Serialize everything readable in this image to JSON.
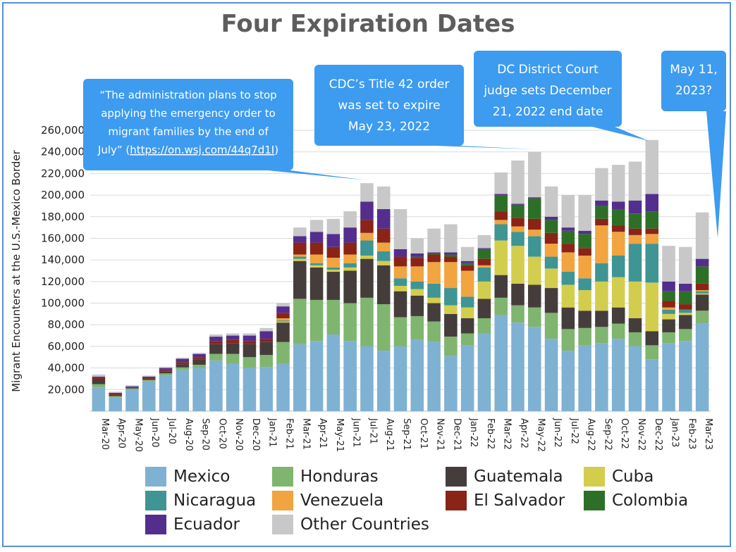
{
  "colors": {
    "Mexico": "#7fb1d3",
    "Honduras": "#7fb56f",
    "Guatemala": "#453d3c",
    "Cuba": "#d3cd4e",
    "Nicaragua": "#3f9593",
    "Venezuela": "#f1a43f",
    "El Salvador": "#8a2417",
    "Colombia": "#2e6f28",
    "Ecuador": "#542e8e",
    "Other Countries": "#c8c8c8",
    "callout": "#3d9bf0"
  },
  "chart_data": {
    "type": "bar",
    "stacked": true,
    "title": "Four Expiration Dates",
    "ylabel": "Migrant Encounters at the U.S.-Mexico Border",
    "xlabel": "",
    "ylim": [
      0,
      270000
    ],
    "yticks": [
      20000,
      40000,
      60000,
      80000,
      100000,
      120000,
      140000,
      160000,
      180000,
      200000,
      220000,
      240000,
      260000
    ],
    "ytick_labels": [
      "20,000",
      "40,000",
      "60,000",
      "80,000",
      "100,000",
      "120,000",
      "140,000",
      "160,000",
      "180,000",
      "200,000",
      "220,000",
      "240,000",
      "260,000"
    ],
    "grid": true,
    "legend_position": "bottom",
    "categories": [
      "Mar-20",
      "Apr-20",
      "May-20",
      "Jun-20",
      "Jul-20",
      "Aug-20",
      "Sep-20",
      "Oct-20",
      "Nov-20",
      "Dec-20",
      "Jan-21",
      "Feb-21",
      "Mar-21",
      "Apr-21",
      "May-21",
      "Jun-21",
      "Jul-21",
      "Aug-21",
      "Sep-21",
      "Oct-21",
      "Nov-21",
      "Dec-21",
      "Jan-22",
      "Feb-22",
      "Mar-22",
      "Apr-22",
      "May-22",
      "Jun-22",
      "Jul-22",
      "Aug-22",
      "Sep-22",
      "Oct-22",
      "Nov-22",
      "Dec-22",
      "Jan-23",
      "Feb-23",
      "Mar-23"
    ],
    "series": [
      {
        "name": "Mexico",
        "values": [
          22000,
          13000,
          20000,
          28000,
          33000,
          38000,
          40000,
          47000,
          44000,
          40000,
          41000,
          44000,
          62000,
          65000,
          71000,
          65000,
          60000,
          56000,
          60000,
          66000,
          64000,
          51000,
          61000,
          72000,
          89000,
          82000,
          78000,
          67000,
          56000,
          61000,
          63000,
          67000,
          60000,
          48000,
          63000,
          65000,
          81000
        ]
      },
      {
        "name": "Honduras",
        "values": [
          3000,
          1000,
          1000,
          1000,
          2000,
          2500,
          3000,
          6000,
          9000,
          10000,
          11000,
          20000,
          42000,
          38000,
          32000,
          35000,
          45000,
          43000,
          27000,
          22000,
          19000,
          18000,
          11000,
          14000,
          16000,
          16000,
          18000,
          24000,
          20000,
          16000,
          15000,
          14000,
          13000,
          13000,
          10000,
          11000,
          12000
        ]
      },
      {
        "name": "Guatemala",
        "values": [
          4000,
          1000,
          1000,
          1000,
          2000,
          3000,
          5000,
          9000,
          10000,
          12000,
          12000,
          18000,
          35000,
          30000,
          26000,
          30000,
          36000,
          36000,
          24000,
          19000,
          17000,
          21000,
          14000,
          18000,
          21000,
          20000,
          21000,
          23000,
          20000,
          16000,
          15000,
          15000,
          13000,
          13000,
          12000,
          13000,
          15000
        ]
      },
      {
        "name": "Cuba",
        "values": [
          0,
          0,
          0,
          0,
          0,
          0,
          0,
          0,
          0,
          0,
          0,
          1000,
          2000,
          2000,
          2000,
          3000,
          3000,
          4000,
          5000,
          6000,
          5000,
          8000,
          10000,
          16000,
          32000,
          35000,
          26000,
          18000,
          21000,
          19000,
          27000,
          28000,
          34000,
          45000,
          5000,
          2000,
          1000
        ]
      },
      {
        "name": "Nicaragua",
        "values": [
          0,
          0,
          0,
          0,
          0,
          0,
          0,
          0,
          0,
          0,
          0,
          1000,
          2000,
          2000,
          2000,
          4000,
          14000,
          9000,
          7000,
          7000,
          13000,
          16000,
          10000,
          13000,
          15000,
          13000,
          19000,
          11000,
          12000,
          11000,
          17000,
          20000,
          35000,
          36000,
          4000,
          3000,
          2000
        ]
      },
      {
        "name": "Venezuela",
        "values": [
          0,
          0,
          0,
          0,
          0,
          0,
          0,
          0,
          0,
          0,
          0,
          2000,
          2000,
          8000,
          9000,
          8000,
          7000,
          8000,
          11000,
          14000,
          20000,
          24000,
          24000,
          2000,
          4000,
          5000,
          6000,
          12000,
          18000,
          21000,
          35000,
          22000,
          8000,
          9000,
          2000,
          0,
          1000
        ]
      },
      {
        "name": "El Salvador",
        "values": [
          2000,
          1000,
          0,
          1000,
          1000,
          2000,
          2000,
          3000,
          3000,
          3000,
          3000,
          5000,
          11000,
          11000,
          10000,
          11000,
          12000,
          13000,
          9000,
          8000,
          7000,
          5000,
          5000,
          6000,
          8000,
          8000,
          10000,
          10000,
          8000,
          7000,
          6000,
          6000,
          6000,
          5000,
          6000,
          5000,
          6000
        ]
      },
      {
        "name": "Colombia",
        "values": [
          0,
          0,
          0,
          0,
          0,
          0,
          0,
          0,
          0,
          0,
          0,
          0,
          0,
          0,
          0,
          0,
          0,
          0,
          0,
          1000,
          1000,
          2000,
          2000,
          9000,
          15000,
          12000,
          19000,
          12000,
          12000,
          13000,
          12000,
          15000,
          14000,
          16000,
          9000,
          12000,
          16000
        ]
      },
      {
        "name": "Ecuador",
        "values": [
          1000,
          1000,
          1000,
          1000,
          2000,
          3000,
          3000,
          4000,
          4000,
          5000,
          7000,
          6000,
          6000,
          10000,
          12000,
          14000,
          17000,
          18000,
          7000,
          3000,
          1000,
          2000,
          2000,
          1000,
          1000,
          1000,
          1000,
          3000,
          3000,
          3000,
          5000,
          7000,
          12000,
          16000,
          9000,
          7000,
          7000
        ]
      },
      {
        "name": "Other Countries",
        "values": [
          2000,
          1000,
          1000,
          1000,
          1000,
          1000,
          1000,
          2000,
          2000,
          2000,
          3000,
          3000,
          8000,
          11000,
          14000,
          15000,
          17000,
          21000,
          37000,
          14000,
          22000,
          26000,
          13000,
          12000,
          20000,
          40000,
          42000,
          28000,
          30000,
          33000,
          30000,
          34000,
          36000,
          50000,
          33000,
          34000,
          43000
        ]
      }
    ]
  },
  "callouts": [
    {
      "text_lines": [
        "“The administration plans to stop",
        "applying the emergency order to",
        "migrant families by the end of"
      ],
      "last_line_prefix": "July” (",
      "link": "https://on.wsj.com/44q7d1I",
      "last_line_suffix": ")"
    },
    {
      "text_lines": [
        "CDC’s Title 42 order",
        "was set to expire",
        "May 23, 2022"
      ]
    },
    {
      "text_lines": [
        "DC District Court",
        "judge sets December",
        "21, 2022 end date"
      ]
    },
    {
      "text_lines": [
        "May 11,",
        "2023?"
      ]
    }
  ]
}
